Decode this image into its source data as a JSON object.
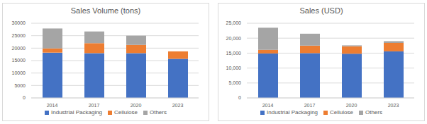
{
  "chart_data": [
    {
      "type": "bar",
      "title": "Sales Volume (tons)",
      "stacked": true,
      "grid": true,
      "legend": "bottom",
      "categories": [
        "2014",
        "2017",
        "2020",
        "2023"
      ],
      "series": [
        {
          "name": "Industrial Packaging",
          "color": "#4472c4",
          "values": [
            18200,
            18000,
            18000,
            15700
          ]
        },
        {
          "name": "Cellulose",
          "color": "#ed7d31",
          "values": [
            1700,
            4000,
            3300,
            3000
          ]
        },
        {
          "name": "Others",
          "color": "#a5a5a5",
          "values": [
            8000,
            4700,
            3700,
            0
          ]
        }
      ],
      "ylim": [
        0,
        30000
      ],
      "yticks": [
        0,
        5000,
        10000,
        15000,
        20000,
        25000,
        30000
      ]
    },
    {
      "type": "bar",
      "title": "Sales (USD)",
      "stacked": true,
      "grid": true,
      "legend": "bottom",
      "categories": [
        "2014",
        "2017",
        "2020",
        "2023"
      ],
      "series": [
        {
          "name": "Industrial Packaging",
          "color": "#4472c4",
          "values": [
            14900,
            15000,
            14800,
            15600
          ]
        },
        {
          "name": "Cellulose",
          "color": "#ed7d31",
          "values": [
            1200,
            2500,
            2500,
            2800
          ]
        },
        {
          "name": "Others",
          "color": "#a5a5a5",
          "values": [
            7400,
            4000,
            300,
            600
          ]
        }
      ],
      "ylim": [
        0,
        25000
      ],
      "yticks": [
        0,
        {
          "value": 5000,
          "label": "5,000"
        },
        {
          "value": 10000,
          "label": "10,000"
        },
        {
          "value": 15000,
          "label": "15,000"
        },
        {
          "value": 20000,
          "label": "20,000"
        },
        {
          "value": 25000,
          "label": "25,000"
        }
      ]
    }
  ]
}
